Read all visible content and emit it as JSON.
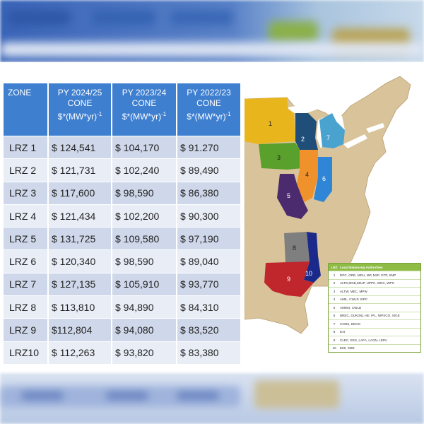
{
  "table": {
    "headers": {
      "zone": "ZONE",
      "col1": "PY 2024/25",
      "col2": "PY 2023/24",
      "col3": "PY 2022/23",
      "cone": "CONE",
      "unit": "$*(MW*yr)",
      "unit_exp": "-1"
    },
    "rows": [
      {
        "zone": "LRZ 1",
        "v1": "$ 124,541",
        "v2": "$ 104,170",
        "v3": "$  91.270"
      },
      {
        "zone": "LRZ 2",
        "v1": "$ 121,731",
        "v2": "$ 102,240",
        "v3": "$  89,490"
      },
      {
        "zone": "LRZ 3",
        "v1": "$ 117,600",
        "v2": "$ 98,590",
        "v3": "$  86,380"
      },
      {
        "zone": "LRZ 4",
        "v1": "$ 121,434",
        "v2": "$ 102,200",
        "v3": "$  90,300"
      },
      {
        "zone": "LRZ 5",
        "v1": "$ 131,725",
        "v2": "$ 109,580",
        "v3": "$  97,190"
      },
      {
        "zone": "LRZ 6",
        "v1": "$ 120,340",
        "v2": "$ 98,590",
        "v3": "$  89,040"
      },
      {
        "zone": "LRZ 7",
        "v1": "$ 127,135",
        "v2": "$ 105,910",
        "v3": "$  93,770"
      },
      {
        "zone": "LRZ 8",
        "v1": "$ 113,810",
        "v2": "$ 94,890",
        "v3": "$  84,310"
      },
      {
        "zone": "LRZ 9",
        "v1": "$112,804",
        "v2": "$ 94,080",
        "v3": "$  83,520"
      },
      {
        "zone": "LRZ10",
        "v1": "$ 112,263",
        "v2": "$ 93,820",
        "v3": "$  83,380"
      }
    ]
  },
  "map": {
    "zone_labels": [
      "1",
      "2",
      "3",
      "4",
      "5",
      "6",
      "7",
      "8",
      "9",
      "10"
    ],
    "zone_colors": {
      "z1": "#e8b51c",
      "z2": "#1f4e79",
      "z3": "#5aa02c",
      "z4": "#f0922b",
      "z5": "#4b2a6e",
      "z6": "#2f86d6",
      "z7": "#4aa3cf",
      "z8": "#7f7f7f",
      "z9": "#c0272d",
      "z10": "#1b2a8a",
      "land": "#d9c39a",
      "water": "#ffffff"
    },
    "legend": {
      "header": {
        "num": "LRZ",
        "name": "Local Balancing Authorities"
      },
      "rows": [
        {
          "num": "1",
          "name": "DPC, GRE, MDU, MP, NSP, OTP, SMP"
        },
        {
          "num": "2",
          "name": "ALTE,MGE,MIUP, UPPC, WEC, WPS"
        },
        {
          "num": "3",
          "name": "ALTW, MEC, MPW"
        },
        {
          "num": "4",
          "name": "AMIL, CWLP, SIPC"
        },
        {
          "num": "5",
          "name": "AMMO, CWLD"
        },
        {
          "num": "6",
          "name": "BREC, DUK(IN), HE, IPL, NIPSCO, SIGE"
        },
        {
          "num": "7",
          "name": "CONS, DECO"
        },
        {
          "num": "8",
          "name": "EAI"
        },
        {
          "num": "9",
          "name": "CLEC, EES, LAFA, LAGN, LEPA"
        },
        {
          "num": "10",
          "name": "EMI, SME"
        }
      ]
    }
  }
}
